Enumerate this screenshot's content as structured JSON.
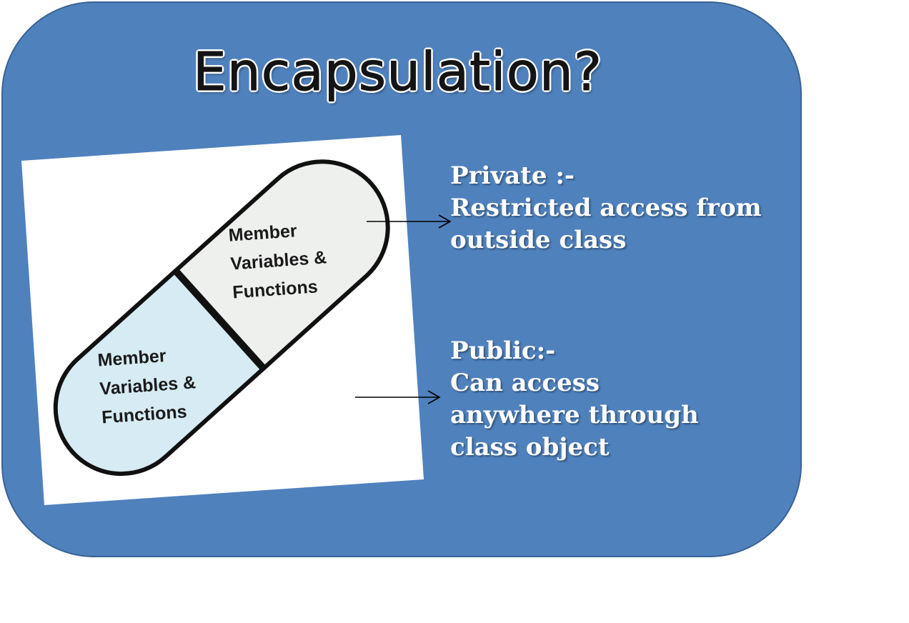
{
  "title": "Encapsulation?",
  "capsule": {
    "upper_lines": [
      "Member",
      "Variables &",
      "Functions"
    ],
    "lower_lines": [
      "Member",
      "Variables &",
      "Functions"
    ],
    "colors": {
      "upper_half": "#eef0ee",
      "lower_half": "#d6ebf3",
      "outline": "#111111"
    }
  },
  "private": {
    "heading": "Private :-",
    "line1": "Restricted access from",
    "line2": "outside class"
  },
  "public": {
    "heading": "Public:-",
    "line1": "Can access",
    "line2": "anywhere through",
    "line3": "class object"
  },
  "colors": {
    "panel": "#4f81bd",
    "panel_border": "#3a6394",
    "label_text": "#ffffff"
  }
}
